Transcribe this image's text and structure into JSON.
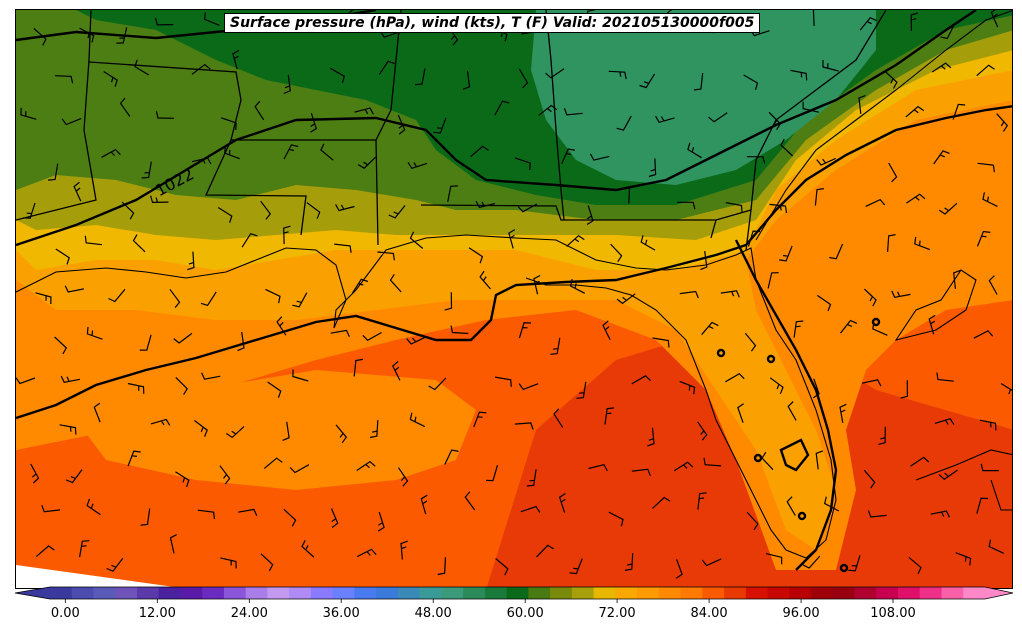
{
  "title": "Surface pressure (hPa), wind (kts), T (F) Valid: 202105130000f005",
  "isobar_label": "1022",
  "colorbar": {
    "min": -2,
    "max": 120,
    "extend": "both",
    "ticks": [
      "0.00",
      "12.00",
      "24.00",
      "36.00",
      "48.00",
      "60.00",
      "72.00",
      "84.00",
      "96.00",
      "108.00"
    ],
    "tick_values": [
      0,
      12,
      24,
      36,
      48,
      60,
      72,
      84,
      96,
      108
    ],
    "colors": [
      "#3a3a9e",
      "#4b4bb0",
      "#5a5ab8",
      "#6e54b8",
      "#5a3aa8",
      "#4a22a0",
      "#5a1aa8",
      "#6a2cc0",
      "#8a55d8",
      "#a97ee8",
      "#c49af0",
      "#b08af5",
      "#8a7aff",
      "#6a80ff",
      "#4a7af0",
      "#3a7ad8",
      "#3a8ab8",
      "#3a9a98",
      "#3a9a7a",
      "#2a8a5a",
      "#1a7a3a",
      "#0a6a1a",
      "#4a7a12",
      "#7a8a0a",
      "#a8a00a",
      "#e8b800",
      "#f8a800",
      "#ff9a00",
      "#ff8a00",
      "#ff7a00",
      "#fa5a00",
      "#e83a00",
      "#d81000",
      "#c80800",
      "#b80000",
      "#a00008",
      "#980010",
      "#b00030",
      "#c80050",
      "#e0106a",
      "#f03088",
      "#f860a8",
      "#ff88c8"
    ]
  },
  "legend_colors": {
    "dark_green": "#0b6a18",
    "teal_green": "#2f9460",
    "green": "#4c7e14",
    "olive": "#a59e0a",
    "yellow": "#f0b800",
    "light_orange": "#faa000",
    "orange": "#ff8a00",
    "deep_orange": "#fb5a00",
    "red_orange": "#e83a06"
  }
}
